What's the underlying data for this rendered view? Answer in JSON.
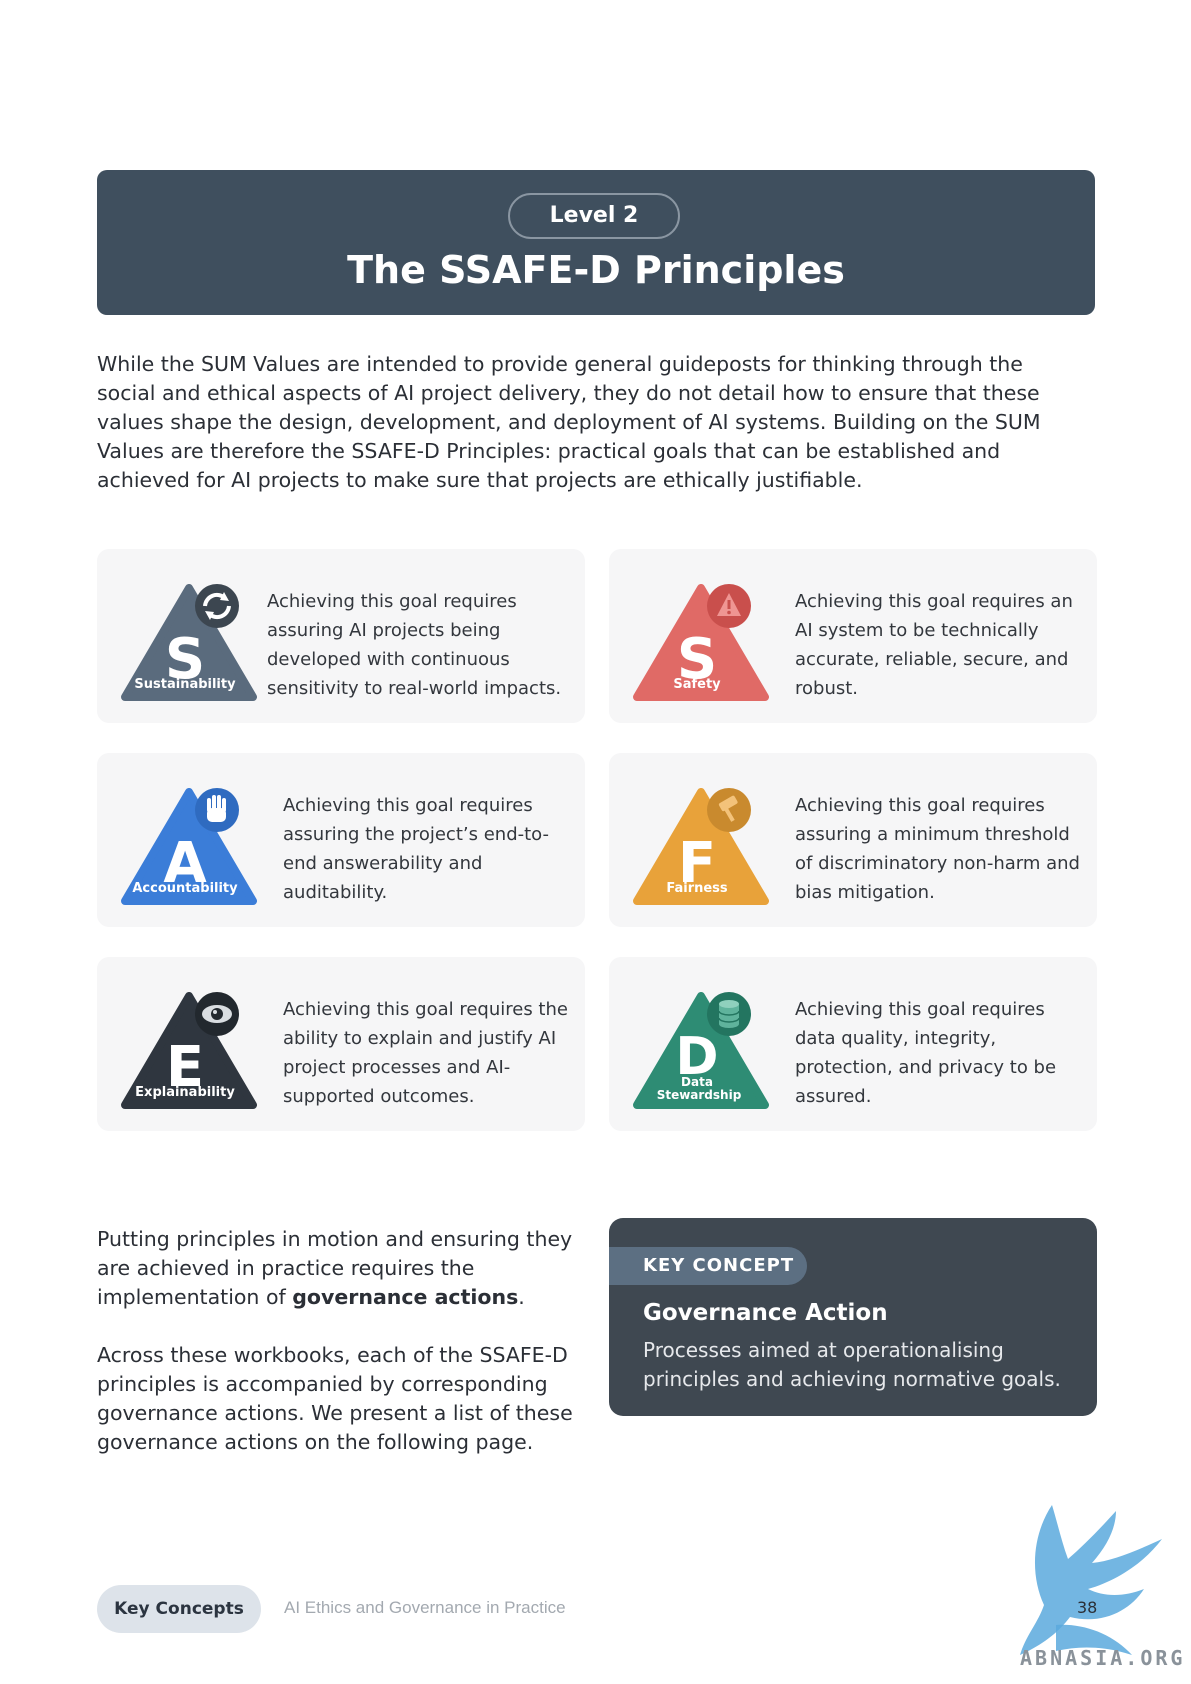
{
  "header": {
    "level": "Level 2",
    "title": "The SSAFE-D Principles"
  },
  "intro": "While the SUM Values are intended to provide general guideposts for thinking through the social and ethical aspects of AI project delivery, they do not detail how to ensure that these values shape the design, development, and deployment of AI systems. Building on the SUM Values are therefore the SSAFE-D Principles: practical goals that can be established and achieved for AI projects to make sure that projects are ethically justifiable.",
  "principles": [
    {
      "letter": "S",
      "name": "Sustainability",
      "text": "Achieving this goal requires assuring AI projects being developed with continuous sensitivity to real-world impacts.",
      "color": "#5a6b7d",
      "icon": "recycle-icon"
    },
    {
      "letter": "S",
      "name": "Safety",
      "text": "Achieving this goal requires an AI system to be technically accurate, reliable, secure, and robust.",
      "color": "#e06a66",
      "icon": "warning-icon"
    },
    {
      "letter": "A",
      "name": "Accountability",
      "text": "Achieving this goal requires assuring the project’s end-to-end answerability and auditability.",
      "color": "#3b7dd8",
      "icon": "hand-icon"
    },
    {
      "letter": "F",
      "name": "Fairness",
      "text": "Achieving this goal requires assuring a minimum threshold of discriminatory non-harm and bias mitigation.",
      "color": "#e8a23a",
      "icon": "gavel-icon"
    },
    {
      "letter": "E",
      "name": "Explainability",
      "text": "Achieving this goal requires the ability to explain and justify AI project processes and AI-supported outcomes.",
      "color": "#2f363f",
      "icon": "eye-icon"
    },
    {
      "letter": "D",
      "name_line1": "Data",
      "name_line2": "Stewardship",
      "text": "Achieving this goal requires data quality, integrity, protection, and privacy to be assured.",
      "color": "#2e8c74",
      "icon": "database-icon"
    }
  ],
  "bottom": {
    "p1_before": "Putting principles in motion and ensuring they are achieved in practice requires the implementation of ",
    "p1_bold": "governance actions",
    "p1_after": ".",
    "p2": "Across these workbooks, each of the SSAFE-D principles is accompanied by corresponding governance actions. We present a list of these governance actions on the following page."
  },
  "key_concept": {
    "tag": "KEY CONCEPT",
    "title": "Governance Action",
    "text": "Processes aimed at operationalising principles and achieving normative goals."
  },
  "footer": {
    "pill": "Key Concepts",
    "text": "AI Ethics and Governance in Practice",
    "page": "38",
    "watermark": "ABNASIA.ORG"
  }
}
